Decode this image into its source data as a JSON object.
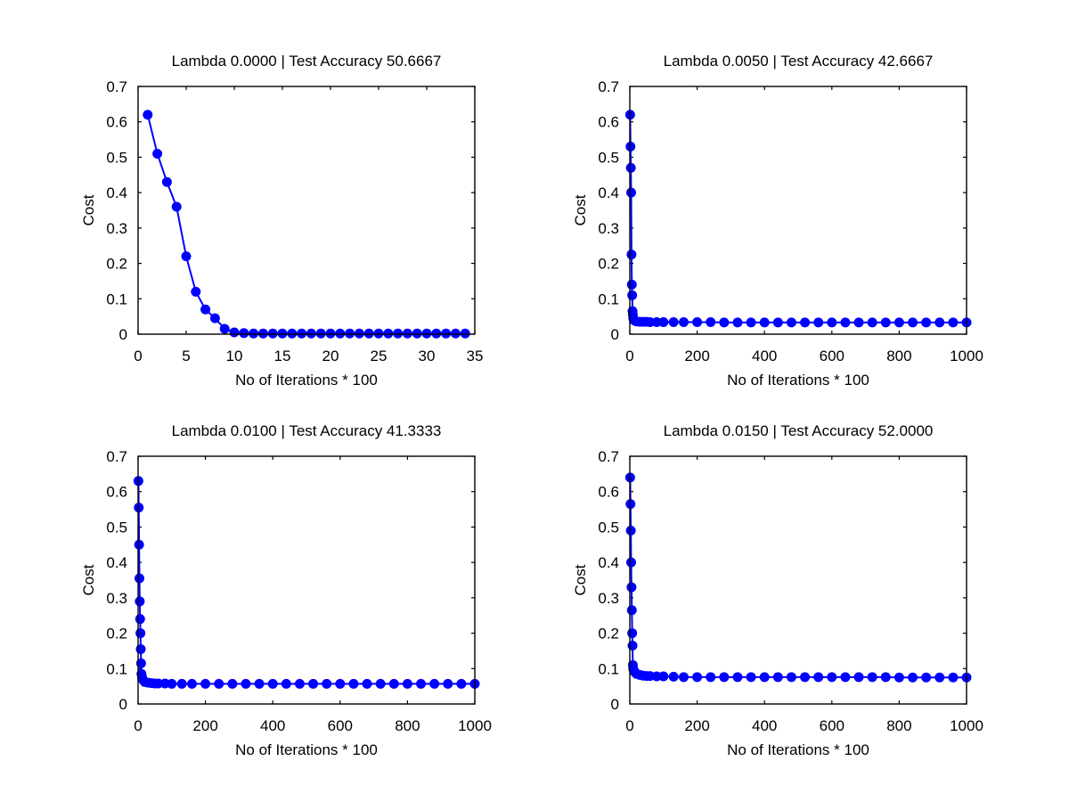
{
  "figure": {
    "background": "#ffffff",
    "series_color": "#0000ff"
  },
  "chart_data": [
    {
      "type": "line",
      "title": "Lambda 0.0000 | Test Accuracy 50.6667",
      "xlabel": "No of Iterations * 100",
      "ylabel": "Cost",
      "xlim": [
        0,
        35
      ],
      "ylim": [
        0,
        0.7
      ],
      "xticks": [
        "0",
        "5",
        "10",
        "15",
        "20",
        "25",
        "30",
        "35"
      ],
      "yticks": [
        "0",
        "0.1",
        "0.2",
        "0.3",
        "0.4",
        "0.5",
        "0.6",
        "0.7"
      ],
      "grid": false,
      "markers": "filled-circle",
      "series": [
        {
          "x": [
            1,
            2,
            3,
            4,
            5,
            6,
            7,
            8,
            9,
            10,
            11,
            12,
            13,
            14,
            15,
            16,
            17,
            18,
            19,
            20,
            21,
            22,
            23,
            24,
            25,
            26,
            27,
            28,
            29,
            30,
            31,
            32,
            33,
            34
          ],
          "y": [
            0.62,
            0.51,
            0.43,
            0.36,
            0.22,
            0.12,
            0.07,
            0.045,
            0.015,
            0.005,
            0.003,
            0.002,
            0.002,
            0.002,
            0.002,
            0.002,
            0.002,
            0.002,
            0.002,
            0.002,
            0.002,
            0.002,
            0.002,
            0.002,
            0.002,
            0.002,
            0.002,
            0.002,
            0.002,
            0.002,
            0.002,
            0.002,
            0.002,
            0.002
          ]
        }
      ]
    },
    {
      "type": "line",
      "title": "Lambda 0.0050 | Test Accuracy 42.6667",
      "xlabel": "No of Iterations * 100",
      "ylabel": "Cost",
      "xlim": [
        0,
        1000
      ],
      "ylim": [
        0,
        0.7
      ],
      "xticks": [
        "0",
        "200",
        "400",
        "600",
        "800",
        "1000"
      ],
      "yticks": [
        "0",
        "0.1",
        "0.2",
        "0.3",
        "0.4",
        "0.5",
        "0.6",
        "0.7"
      ],
      "grid": false,
      "markers": "filled-circle",
      "series": [
        {
          "x": [
            1,
            2,
            3,
            4,
            5,
            6,
            7,
            8,
            9,
            10,
            12,
            15,
            20,
            30,
            40,
            50,
            60,
            80,
            100,
            130,
            160,
            200,
            240,
            280,
            320,
            360,
            400,
            440,
            480,
            520,
            560,
            600,
            640,
            680,
            720,
            760,
            800,
            840,
            880,
            920,
            960,
            1000
          ],
          "y": [
            0.62,
            0.53,
            0.47,
            0.4,
            0.225,
            0.14,
            0.11,
            0.065,
            0.055,
            0.045,
            0.04,
            0.038,
            0.036,
            0.035,
            0.035,
            0.035,
            0.034,
            0.034,
            0.034,
            0.034,
            0.034,
            0.034,
            0.034,
            0.033,
            0.033,
            0.033,
            0.033,
            0.033,
            0.033,
            0.033,
            0.033,
            0.033,
            0.033,
            0.033,
            0.033,
            0.033,
            0.033,
            0.033,
            0.033,
            0.033,
            0.033,
            0.033
          ]
        }
      ]
    },
    {
      "type": "line",
      "title": "Lambda 0.0100 | Test Accuracy 41.3333",
      "xlabel": "No of Iterations * 100",
      "ylabel": "Cost",
      "xlim": [
        0,
        1000
      ],
      "ylim": [
        0,
        0.7
      ],
      "xticks": [
        "0",
        "200",
        "400",
        "600",
        "800",
        "1000"
      ],
      "yticks": [
        "0",
        "0.1",
        "0.2",
        "0.3",
        "0.4",
        "0.5",
        "0.6",
        "0.7"
      ],
      "grid": false,
      "markers": "filled-circle",
      "series": [
        {
          "x": [
            1,
            2,
            3,
            4,
            5,
            6,
            7,
            8,
            9,
            10,
            12,
            15,
            20,
            30,
            40,
            50,
            60,
            80,
            100,
            130,
            160,
            200,
            240,
            280,
            320,
            360,
            400,
            440,
            480,
            520,
            560,
            600,
            640,
            680,
            720,
            760,
            800,
            840,
            880,
            920,
            960,
            1000
          ],
          "y": [
            0.63,
            0.555,
            0.45,
            0.355,
            0.29,
            0.24,
            0.2,
            0.155,
            0.115,
            0.085,
            0.075,
            0.068,
            0.062,
            0.06,
            0.059,
            0.058,
            0.058,
            0.058,
            0.057,
            0.057,
            0.057,
            0.057,
            0.057,
            0.057,
            0.057,
            0.057,
            0.057,
            0.057,
            0.057,
            0.057,
            0.057,
            0.057,
            0.057,
            0.057,
            0.057,
            0.057,
            0.057,
            0.057,
            0.057,
            0.057,
            0.057,
            0.057
          ]
        }
      ]
    },
    {
      "type": "line",
      "title": "Lambda 0.0150 | Test Accuracy 52.0000",
      "xlabel": "No of Iterations * 100",
      "ylabel": "Cost",
      "xlim": [
        0,
        1000
      ],
      "ylim": [
        0,
        0.7
      ],
      "xticks": [
        "0",
        "200",
        "400",
        "600",
        "800",
        "1000"
      ],
      "yticks": [
        "0",
        "0.1",
        "0.2",
        "0.3",
        "0.4",
        "0.5",
        "0.6",
        "0.7"
      ],
      "grid": false,
      "markers": "filled-circle",
      "series": [
        {
          "x": [
            1,
            2,
            3,
            4,
            5,
            6,
            7,
            8,
            9,
            10,
            12,
            15,
            20,
            30,
            40,
            50,
            60,
            80,
            100,
            130,
            160,
            200,
            240,
            280,
            320,
            360,
            400,
            440,
            480,
            520,
            560,
            600,
            640,
            680,
            720,
            760,
            800,
            840,
            880,
            920,
            960,
            1000
          ],
          "y": [
            0.64,
            0.565,
            0.49,
            0.4,
            0.33,
            0.265,
            0.2,
            0.165,
            0.11,
            0.1,
            0.095,
            0.09,
            0.085,
            0.082,
            0.08,
            0.079,
            0.079,
            0.078,
            0.078,
            0.077,
            0.076,
            0.076,
            0.076,
            0.076,
            0.076,
            0.076,
            0.076,
            0.076,
            0.076,
            0.076,
            0.076,
            0.076,
            0.076,
            0.076,
            0.076,
            0.076,
            0.075,
            0.075,
            0.075,
            0.075,
            0.075,
            0.075
          ]
        }
      ]
    }
  ]
}
